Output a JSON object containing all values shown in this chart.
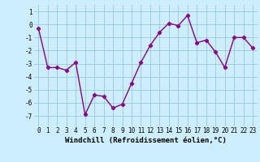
{
  "x": [
    0,
    1,
    2,
    3,
    4,
    5,
    6,
    7,
    8,
    9,
    10,
    11,
    12,
    13,
    14,
    15,
    16,
    17,
    18,
    19,
    20,
    21,
    22,
    23
  ],
  "y": [
    -0.3,
    -3.3,
    -3.3,
    -3.5,
    -2.9,
    -6.9,
    -5.4,
    -5.5,
    -6.4,
    -6.1,
    -4.5,
    -2.9,
    -1.6,
    -0.6,
    0.1,
    -0.1,
    0.7,
    -1.4,
    -1.2,
    -2.1,
    -3.3,
    -1.0,
    -1.0,
    -1.8
  ],
  "line_color": "#880088",
  "marker": "D",
  "markersize": 2.2,
  "linewidth": 1.0,
  "xlabel": "Windchill (Refroidissement éolien,°C)",
  "xlabel_fontsize": 6.5,
  "ylabel_ticks": [
    -7,
    -6,
    -5,
    -4,
    -3,
    -2,
    -1,
    0,
    1
  ],
  "xtick_labels": [
    "0",
    "1",
    "2",
    "3",
    "4",
    "5",
    "6",
    "7",
    "8",
    "9",
    "10",
    "11",
    "12",
    "13",
    "14",
    "15",
    "16",
    "17",
    "18",
    "19",
    "20",
    "21",
    "22",
    "23"
  ],
  "background_color": "#cceeff",
  "grid_color": "#99cccc",
  "ylim": [
    -7.8,
    1.5
  ],
  "xlim": [
    -0.5,
    23.5
  ],
  "tick_fontsize": 5.5,
  "title": ""
}
